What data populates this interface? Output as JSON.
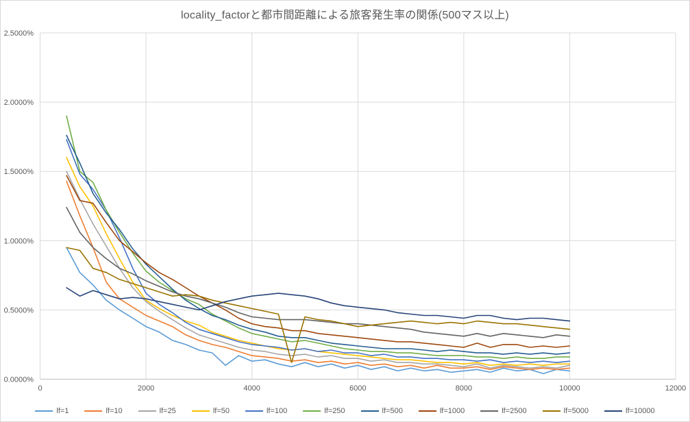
{
  "window": {
    "background": "#FFFFFF",
    "border_color": "#D9D9D9"
  },
  "chart_data": {
    "type": "line",
    "title": "locality_factorと都市間距離による旅客発生率の関係(500マス以上)",
    "xlabel": "",
    "ylabel": "",
    "xlim": [
      0,
      12000
    ],
    "ylim": [
      0,
      2.5
    ],
    "grid": true,
    "legend_position": "bottom",
    "colors": {
      "gridline": "#D9D9D9",
      "axis_line": "#BFBFBF",
      "text": "#595959",
      "title": "#595959"
    },
    "x_ticks": {
      "values": [
        0,
        2000,
        4000,
        6000,
        8000,
        10000,
        12000
      ],
      "labels": [
        "0",
        "2000",
        "4000",
        "6000",
        "8000",
        "10000",
        "12000"
      ]
    },
    "y_ticks": {
      "values": [
        0,
        0.5,
        1.0,
        1.5,
        2.0,
        2.5
      ],
      "labels": [
        "0.0000%",
        "0.5000%",
        "1.0000%",
        "1.5000%",
        "2.0000%",
        "2.5000%"
      ]
    },
    "x": [
      500,
      750,
      1000,
      1250,
      1500,
      1750,
      2000,
      2250,
      2500,
      2750,
      3000,
      3250,
      3500,
      3750,
      4000,
      4250,
      4500,
      4750,
      5000,
      5250,
      5500,
      5750,
      6000,
      6250,
      6500,
      6750,
      7000,
      7250,
      7500,
      7750,
      8000,
      8250,
      8500,
      8750,
      9000,
      9250,
      9500,
      9750,
      10000
    ],
    "series": [
      {
        "name": "lf=1",
        "color": "#5B9BD5",
        "values": [
          0.95,
          0.77,
          0.68,
          0.57,
          0.5,
          0.44,
          0.38,
          0.34,
          0.28,
          0.25,
          0.21,
          0.19,
          0.1,
          0.17,
          0.13,
          0.14,
          0.11,
          0.09,
          0.12,
          0.09,
          0.11,
          0.08,
          0.1,
          0.07,
          0.09,
          0.06,
          0.08,
          0.06,
          0.07,
          0.05,
          0.06,
          0.07,
          0.05,
          0.08,
          0.06,
          0.07,
          0.04,
          0.07,
          0.06
        ]
      },
      {
        "name": "lf=10",
        "color": "#ED7D31",
        "values": [
          1.43,
          1.18,
          0.95,
          0.7,
          0.58,
          0.52,
          0.46,
          0.42,
          0.38,
          0.32,
          0.28,
          0.25,
          0.23,
          0.2,
          0.17,
          0.16,
          0.15,
          0.13,
          0.14,
          0.12,
          0.13,
          0.11,
          0.12,
          0.1,
          0.11,
          0.09,
          0.1,
          0.08,
          0.1,
          0.08,
          0.08,
          0.09,
          0.07,
          0.09,
          0.08,
          0.07,
          0.08,
          0.07,
          0.08
        ]
      },
      {
        "name": "lf=25",
        "color": "#A5A5A5",
        "values": [
          1.5,
          1.3,
          1.12,
          0.96,
          0.8,
          0.66,
          0.56,
          0.49,
          0.43,
          0.37,
          0.32,
          0.29,
          0.26,
          0.23,
          0.21,
          0.2,
          0.18,
          0.17,
          0.18,
          0.16,
          0.17,
          0.15,
          0.15,
          0.13,
          0.14,
          0.12,
          0.12,
          0.11,
          0.11,
          0.1,
          0.09,
          0.11,
          0.08,
          0.1,
          0.09,
          0.08,
          0.09,
          0.08,
          0.1
        ]
      },
      {
        "name": "lf=50",
        "color": "#FFC000",
        "values": [
          1.6,
          1.39,
          1.25,
          1.05,
          0.87,
          0.7,
          0.57,
          0.51,
          0.46,
          0.42,
          0.39,
          0.34,
          0.31,
          0.28,
          0.26,
          0.24,
          0.22,
          0.21,
          0.22,
          0.2,
          0.19,
          0.18,
          0.17,
          0.16,
          0.15,
          0.14,
          0.14,
          0.13,
          0.12,
          0.12,
          0.11,
          0.12,
          0.1,
          0.11,
          0.1,
          0.11,
          0.1,
          0.11,
          0.11
        ]
      },
      {
        "name": "lf=100",
        "color": "#4472C4",
        "values": [
          1.73,
          1.48,
          1.37,
          1.22,
          1.02,
          0.8,
          0.62,
          0.54,
          0.48,
          0.41,
          0.36,
          0.33,
          0.3,
          0.27,
          0.25,
          0.24,
          0.23,
          0.21,
          0.22,
          0.2,
          0.21,
          0.19,
          0.19,
          0.17,
          0.18,
          0.16,
          0.16,
          0.15,
          0.15,
          0.14,
          0.14,
          0.13,
          0.14,
          0.12,
          0.13,
          0.12,
          0.13,
          0.12,
          0.13
        ]
      },
      {
        "name": "lf=250",
        "color": "#70AD47",
        "values": [
          1.9,
          1.5,
          1.42,
          1.22,
          1.06,
          0.91,
          0.78,
          0.7,
          0.64,
          0.58,
          0.54,
          0.47,
          0.42,
          0.37,
          0.33,
          0.31,
          0.29,
          0.27,
          0.28,
          0.26,
          0.24,
          0.22,
          0.21,
          0.2,
          0.2,
          0.19,
          0.19,
          0.18,
          0.17,
          0.17,
          0.17,
          0.16,
          0.16,
          0.15,
          0.16,
          0.15,
          0.15,
          0.16,
          0.16
        ]
      },
      {
        "name": "lf=500",
        "color": "#255E91",
        "values": [
          1.76,
          1.56,
          1.34,
          1.2,
          1.08,
          0.94,
          0.83,
          0.74,
          0.65,
          0.57,
          0.51,
          0.46,
          0.43,
          0.39,
          0.36,
          0.34,
          0.31,
          0.3,
          0.3,
          0.28,
          0.26,
          0.25,
          0.24,
          0.23,
          0.22,
          0.22,
          0.22,
          0.21,
          0.2,
          0.21,
          0.2,
          0.19,
          0.19,
          0.18,
          0.19,
          0.18,
          0.19,
          0.18,
          0.19
        ]
      },
      {
        "name": "lf=1000",
        "color": "#9E480E",
        "values": [
          1.47,
          1.29,
          1.27,
          1.13,
          1.0,
          0.92,
          0.84,
          0.77,
          0.72,
          0.66,
          0.6,
          0.55,
          0.5,
          0.44,
          0.4,
          0.38,
          0.37,
          0.35,
          0.35,
          0.33,
          0.32,
          0.31,
          0.3,
          0.29,
          0.28,
          0.27,
          0.27,
          0.26,
          0.25,
          0.24,
          0.23,
          0.26,
          0.23,
          0.25,
          0.25,
          0.23,
          0.24,
          0.23,
          0.24
        ]
      },
      {
        "name": "lf=2500",
        "color": "#636363",
        "values": [
          1.24,
          1.06,
          0.95,
          0.87,
          0.8,
          0.76,
          0.71,
          0.67,
          0.63,
          0.6,
          0.58,
          0.55,
          0.52,
          0.48,
          0.45,
          0.44,
          0.43,
          0.43,
          0.43,
          0.42,
          0.41,
          0.4,
          0.4,
          0.39,
          0.38,
          0.37,
          0.36,
          0.34,
          0.33,
          0.32,
          0.31,
          0.33,
          0.31,
          0.33,
          0.32,
          0.31,
          0.3,
          0.32,
          0.31
        ]
      },
      {
        "name": "lf=5000",
        "color": "#997300",
        "values": [
          0.95,
          0.93,
          0.8,
          0.77,
          0.72,
          0.69,
          0.66,
          0.63,
          0.6,
          0.61,
          0.6,
          0.57,
          0.55,
          0.53,
          0.51,
          0.49,
          0.47,
          0.12,
          0.45,
          0.43,
          0.42,
          0.4,
          0.38,
          0.39,
          0.4,
          0.41,
          0.42,
          0.41,
          0.4,
          0.41,
          0.4,
          0.42,
          0.41,
          0.4,
          0.4,
          0.39,
          0.38,
          0.37,
          0.36
        ]
      },
      {
        "name": "lf=10000",
        "color": "#264478",
        "values": [
          0.66,
          0.6,
          0.64,
          0.61,
          0.58,
          0.59,
          0.58,
          0.56,
          0.54,
          0.52,
          0.5,
          0.53,
          0.56,
          0.58,
          0.6,
          0.61,
          0.62,
          0.61,
          0.6,
          0.58,
          0.55,
          0.53,
          0.52,
          0.51,
          0.5,
          0.48,
          0.47,
          0.46,
          0.46,
          0.45,
          0.44,
          0.46,
          0.46,
          0.44,
          0.43,
          0.44,
          0.44,
          0.43,
          0.42
        ]
      }
    ]
  }
}
